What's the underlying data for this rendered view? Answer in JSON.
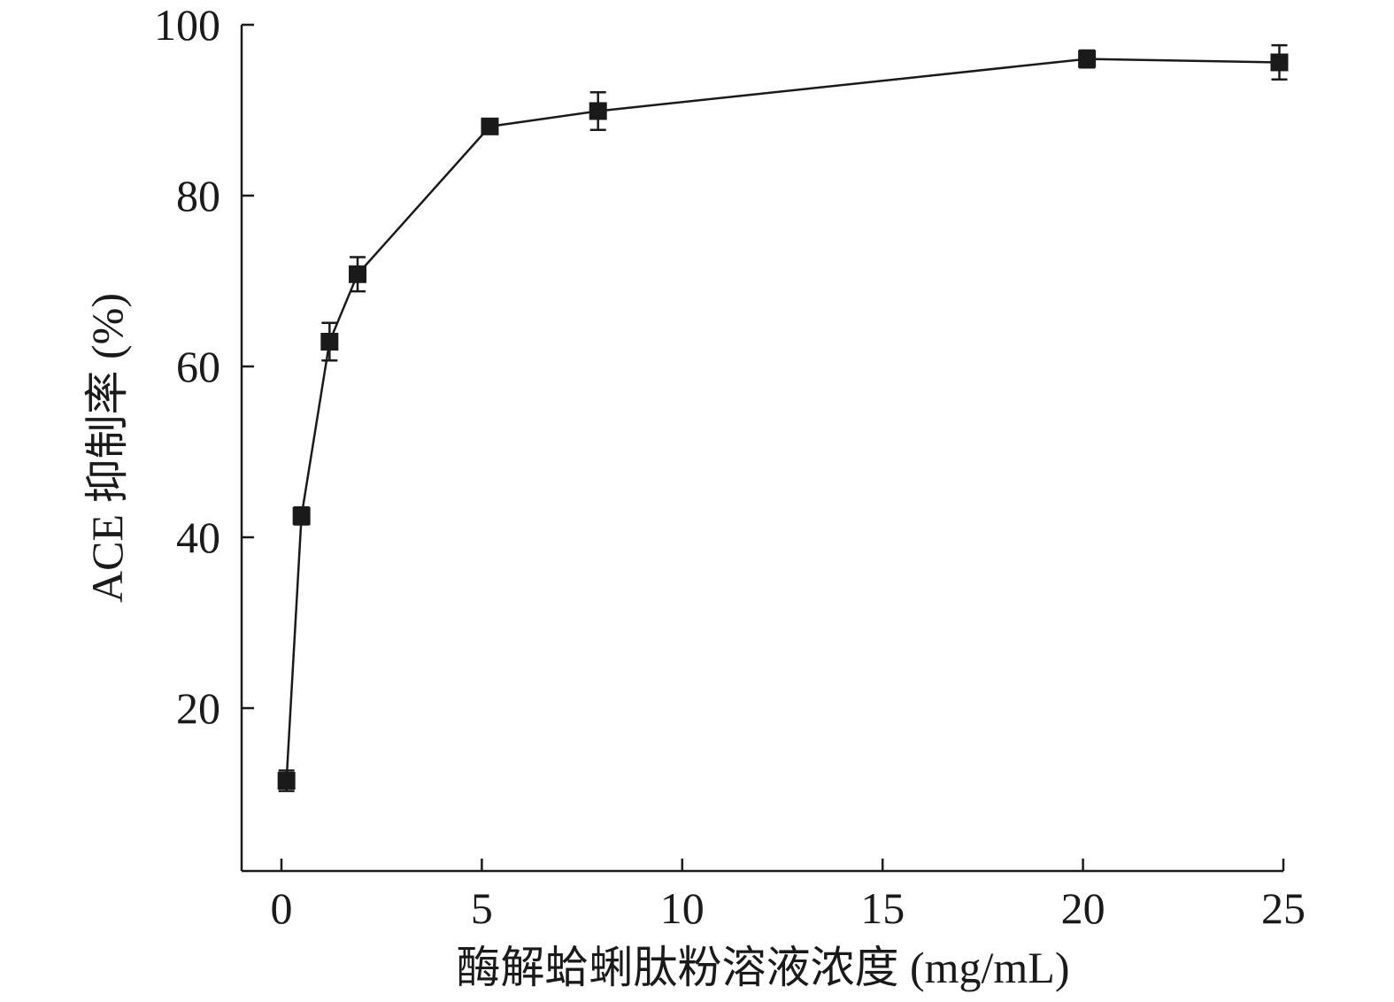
{
  "chart_data": {
    "type": "line",
    "xlabel": "酶解蛤蜊肽粉溶液浓度 (mg/mL)",
    "ylabel": "ACE 抑制率 (%)",
    "xlim": [
      -1,
      25
    ],
    "ylim": [
      0,
      100
    ],
    "xticks": [
      0,
      5,
      10,
      15,
      20,
      25
    ],
    "yticks": [
      20,
      40,
      60,
      80,
      100
    ],
    "grid": false,
    "color": "#1a1a1a",
    "marker": "square",
    "series": [
      {
        "x": [
          0.125,
          0.5,
          1.2,
          1.9,
          5.2,
          7.9,
          20.1,
          24.9
        ],
        "y": [
          11.5,
          42.5,
          62.9,
          70.8,
          88.1,
          89.9,
          96.0,
          95.6
        ],
        "error": [
          1.2,
          1.0,
          2.2,
          2.0,
          0.8,
          2.2,
          1.0,
          2.0
        ]
      }
    ]
  }
}
